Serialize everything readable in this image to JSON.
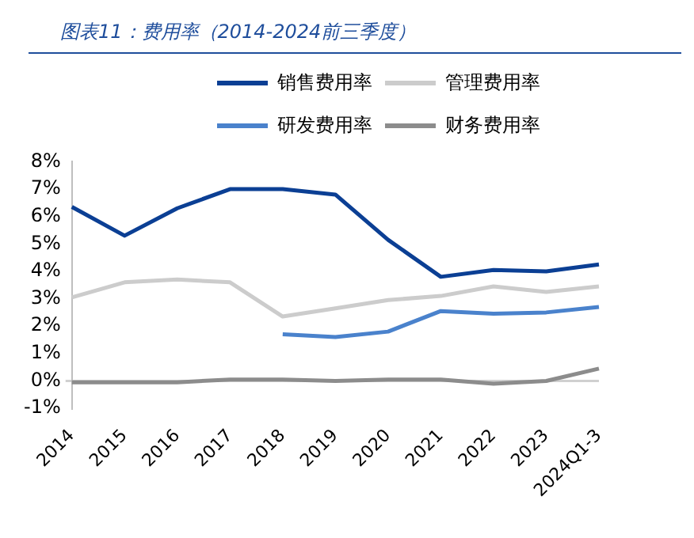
{
  "chart_data": {
    "type": "line",
    "title": "图表11：费用率（2014-2024前三季度）",
    "categories": [
      "2014",
      "2015",
      "2016",
      "2017",
      "2018",
      "2019",
      "2020",
      "2021",
      "2022",
      "2023",
      "2024Q1-3"
    ],
    "series": [
      {
        "name": "销售费用率",
        "color": "#0b3f94",
        "values": [
          6.35,
          5.3,
          6.3,
          7.0,
          7.0,
          6.8,
          5.15,
          3.8,
          4.05,
          4.0,
          4.25
        ]
      },
      {
        "name": "管理费用率",
        "color": "#cccccc",
        "values": [
          3.05,
          3.6,
          3.7,
          3.6,
          2.35,
          2.65,
          2.95,
          3.1,
          3.45,
          3.25,
          3.45
        ]
      },
      {
        "name": "研发费用率",
        "color": "#4a82cc",
        "values": [
          null,
          null,
          null,
          null,
          1.7,
          1.6,
          1.8,
          2.55,
          2.45,
          2.5,
          2.7
        ]
      },
      {
        "name": "财务费用率",
        "color": "#8c8c8c",
        "values": [
          -0.05,
          -0.05,
          -0.05,
          0.05,
          0.05,
          0.0,
          0.05,
          0.05,
          -0.1,
          0.0,
          0.45
        ]
      }
    ],
    "ylim": [
      -1,
      8
    ],
    "yticks": [
      {
        "value": -1,
        "label": "-1%"
      },
      {
        "value": 0,
        "label": "0%"
      },
      {
        "value": 1,
        "label": "1%"
      },
      {
        "value": 2,
        "label": "2%"
      },
      {
        "value": 3,
        "label": "3%"
      },
      {
        "value": 4,
        "label": "4%"
      },
      {
        "value": 5,
        "label": "5%"
      },
      {
        "value": 6,
        "label": "6%"
      },
      {
        "value": 7,
        "label": "7%"
      },
      {
        "value": 8,
        "label": "8%"
      }
    ],
    "legend": "top",
    "marker": "none",
    "line_style": "solid"
  }
}
